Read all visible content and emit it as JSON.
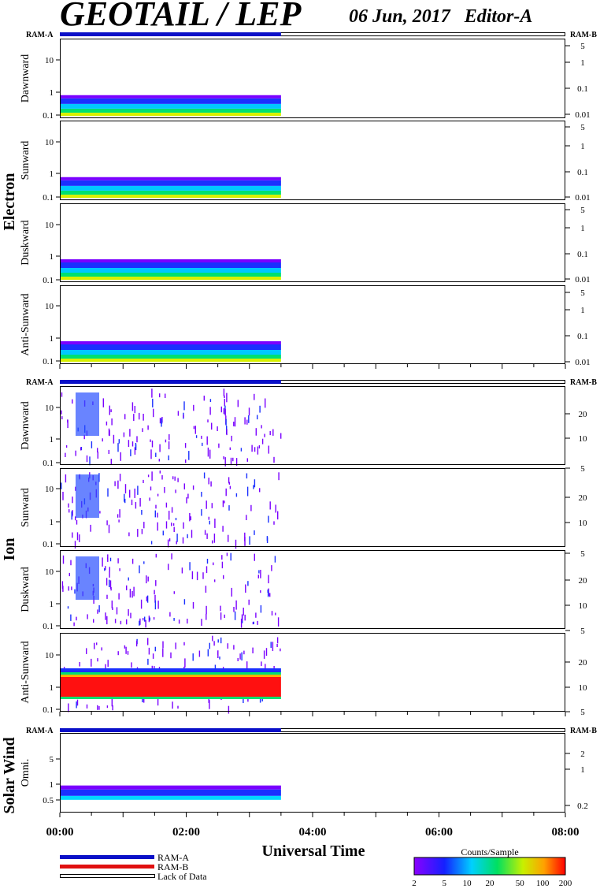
{
  "header": {
    "title": "GEOTAIL / LEP",
    "date_editor": "06 Jun, 2017   Editor-A"
  },
  "mode_labels": {
    "left": "RAM-A",
    "right": "RAM-B"
  },
  "group_labels": {
    "electron": "Electron",
    "ion": "Ion",
    "solar_wind": "Solar Wind"
  },
  "x_axis": {
    "label": "Universal Time",
    "ticks": [
      "00:00",
      "02:00",
      "04:00",
      "06:00",
      "08:00"
    ],
    "range_hours": [
      0,
      8
    ],
    "data_end_hours": 3.5
  },
  "legend": {
    "ram_a": "RAM-A",
    "ram_b": "RAM-B",
    "lack": "Lack of Data",
    "colors": {
      "ram_a": "#0a10c8",
      "ram_b": "#e01010"
    }
  },
  "colorbar": {
    "title": "Counts/Sample",
    "ticks": [
      "2",
      "5",
      "10",
      "20",
      "50",
      "100",
      "200"
    ],
    "range": [
      2,
      200
    ],
    "scale": "log"
  },
  "chart_data": [
    {
      "type": "heatmap",
      "group": "Electron",
      "ylabel": "Dawnward",
      "left_ticks": [
        "10",
        "1",
        "0.1"
      ],
      "left_scale": "log",
      "right_ticks": [
        "5",
        "1",
        "0.1",
        "0.01"
      ],
      "right_scale": "log"
    },
    {
      "type": "heatmap",
      "group": "Electron",
      "ylabel": "Sunward",
      "left_ticks": [
        "10",
        "1",
        "0.1"
      ],
      "left_scale": "log",
      "right_ticks": [
        "5",
        "1",
        "0.1",
        "0.01"
      ],
      "right_scale": "log"
    },
    {
      "type": "heatmap",
      "group": "Electron",
      "ylabel": "Duskward",
      "left_ticks": [
        "10",
        "1",
        "0.1"
      ],
      "left_scale": "log",
      "right_ticks": [
        "5",
        "1",
        "0.1",
        "0.01"
      ],
      "right_scale": "log"
    },
    {
      "type": "heatmap",
      "group": "Electron",
      "ylabel": "Anti-Sunward",
      "left_ticks": [
        "10",
        "1",
        "0.1"
      ],
      "left_scale": "log",
      "right_ticks": [
        "5",
        "1",
        "0.1",
        "0.01"
      ],
      "right_scale": "log"
    },
    {
      "type": "heatmap",
      "group": "Ion",
      "ylabel": "Dawnward",
      "left_ticks": [
        "10",
        "1",
        "0.1"
      ],
      "left_scale": "log",
      "right_ticks": [
        "20",
        "10",
        "5"
      ],
      "right_scale": "log"
    },
    {
      "type": "heatmap",
      "group": "Ion",
      "ylabel": "Sunward",
      "left_ticks": [
        "10",
        "1",
        "0.1"
      ],
      "left_scale": "log",
      "right_ticks": [
        "20",
        "10",
        "5"
      ],
      "right_scale": "log"
    },
    {
      "type": "heatmap",
      "group": "Ion",
      "ylabel": "Duskward",
      "left_ticks": [
        "10",
        "1",
        "0.1"
      ],
      "left_scale": "log",
      "right_ticks": [
        "20",
        "10",
        "5"
      ],
      "right_scale": "log"
    },
    {
      "type": "heatmap",
      "group": "Ion",
      "ylabel": "Anti-Sunward",
      "left_ticks": [
        "10",
        "1",
        "0.1"
      ],
      "left_scale": "log",
      "right_ticks": [
        "20",
        "10",
        "5"
      ],
      "right_scale": "log"
    },
    {
      "type": "heatmap",
      "group": "Solar Wind",
      "ylabel": "Omni.",
      "left_ticks": [
        "5",
        "1",
        "0.5"
      ],
      "left_scale": "log",
      "right_ticks": [
        "2",
        "1",
        "0.2"
      ],
      "right_scale": "log"
    }
  ]
}
